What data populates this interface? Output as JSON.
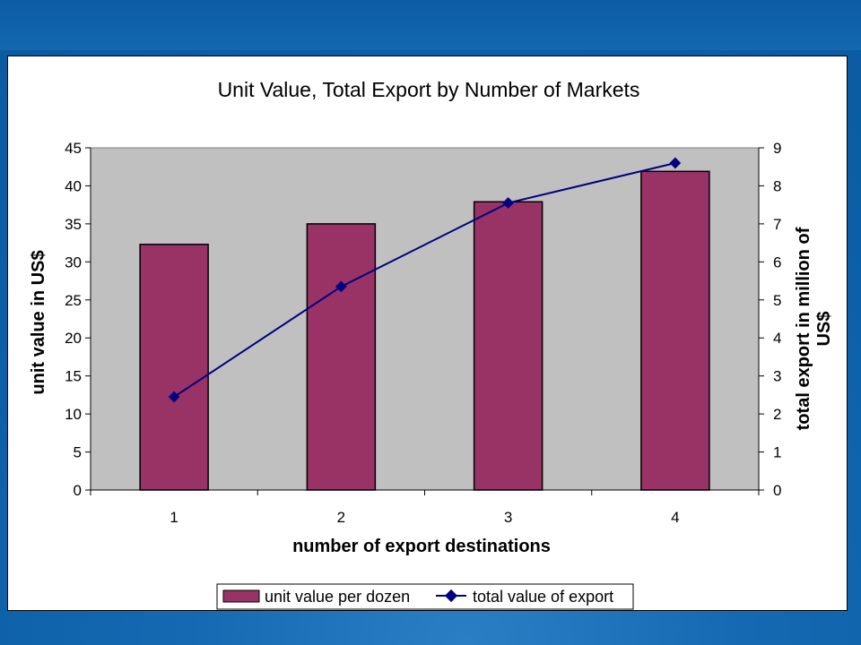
{
  "chart_data": {
    "type": "bar",
    "title": "Unit Value, Total Export by Number of Markets",
    "xlabel": "number of export destinations",
    "ylabel": "unit value in US$",
    "y2label_line1": "total export in million of",
    "y2label_line2": "US$",
    "categories": [
      "1",
      "2",
      "3",
      "4"
    ],
    "ylim": [
      0,
      45
    ],
    "y2lim": [
      0,
      9
    ],
    "yticks": [
      "0",
      "5",
      "10",
      "15",
      "20",
      "25",
      "30",
      "35",
      "40",
      "45"
    ],
    "y2ticks": [
      "0",
      "1",
      "2",
      "3",
      "4",
      "5",
      "6",
      "7",
      "8",
      "9"
    ],
    "grid": false,
    "legend_position": "bottom",
    "series": [
      {
        "name": "unit value per dozen",
        "type": "bar",
        "axis": "left",
        "color": "#993366",
        "values": [
          32.3,
          35.0,
          37.9,
          41.9
        ]
      },
      {
        "name": "total value of export",
        "type": "line",
        "axis": "right",
        "color": "#000080",
        "values": [
          2.45,
          5.35,
          7.55,
          8.6
        ]
      }
    ],
    "plot_background": "#c0c0c0"
  }
}
